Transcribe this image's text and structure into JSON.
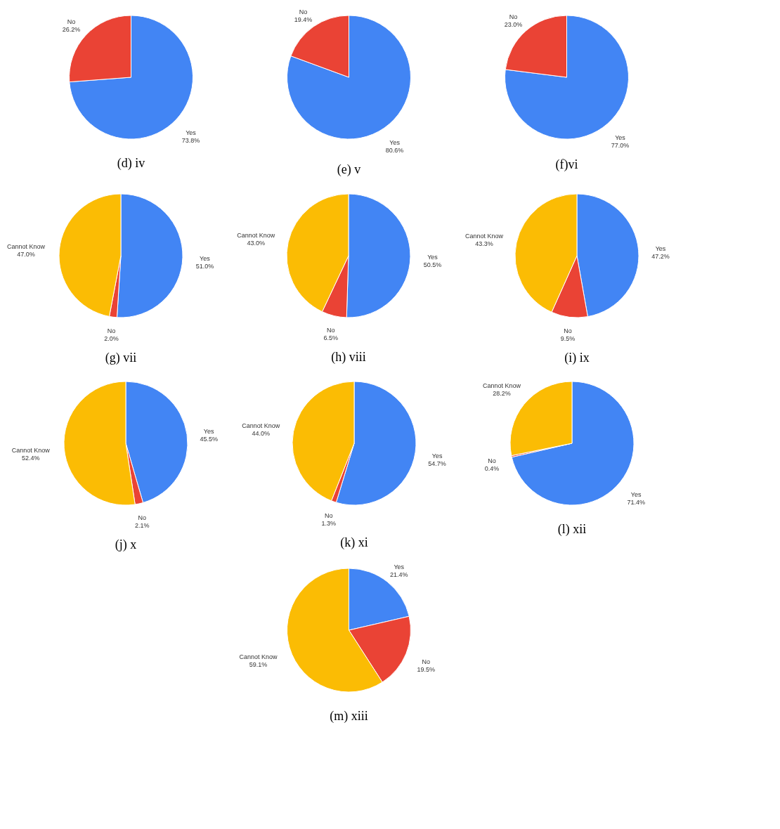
{
  "chart_data": [
    {
      "type": "pie",
      "title": "(d) iv",
      "categories": [
        "Yes",
        "No"
      ],
      "values": [
        73.8,
        26.2
      ],
      "value_labels": [
        "73.8%",
        "26.2%"
      ],
      "colors": [
        "#4285f4",
        "#ea4335"
      ]
    },
    {
      "type": "pie",
      "title": "(e) v",
      "categories": [
        "Yes",
        "No"
      ],
      "values": [
        80.6,
        19.4
      ],
      "value_labels": [
        "80.6%",
        "19.4%"
      ],
      "colors": [
        "#4285f4",
        "#ea4335"
      ]
    },
    {
      "type": "pie",
      "title": "(f)vi",
      "categories": [
        "Yes",
        "No"
      ],
      "values": [
        77.0,
        23.0
      ],
      "value_labels": [
        "77.0%",
        "23.0%"
      ],
      "colors": [
        "#4285f4",
        "#ea4335"
      ]
    },
    {
      "type": "pie",
      "title": "(g) vii",
      "categories": [
        "Yes",
        "No",
        "Cannot Know"
      ],
      "values": [
        51.0,
        2.0,
        47.0
      ],
      "value_labels": [
        "51.0%",
        "2.0%",
        "47.0%"
      ],
      "colors": [
        "#4285f4",
        "#ea4335",
        "#fbbc04"
      ]
    },
    {
      "type": "pie",
      "title": "(h) viii",
      "categories": [
        "Yes",
        "No",
        "Cannot Know"
      ],
      "values": [
        50.5,
        6.5,
        43.0
      ],
      "value_labels": [
        "50.5%",
        "6.5%",
        "43.0%"
      ],
      "colors": [
        "#4285f4",
        "#ea4335",
        "#fbbc04"
      ]
    },
    {
      "type": "pie",
      "title": "(i) ix",
      "categories": [
        "Yes",
        "No",
        "Cannot Know"
      ],
      "values": [
        47.2,
        9.5,
        43.3
      ],
      "value_labels": [
        "47.2%",
        "9.5%",
        "43.3%"
      ],
      "colors": [
        "#4285f4",
        "#ea4335",
        "#fbbc04"
      ]
    },
    {
      "type": "pie",
      "title": "(j) x",
      "categories": [
        "Yes",
        "No",
        "Cannot Know"
      ],
      "values": [
        45.5,
        2.1,
        52.4
      ],
      "value_labels": [
        "45.5%",
        "2.1%",
        "52.4%"
      ],
      "colors": [
        "#4285f4",
        "#ea4335",
        "#fbbc04"
      ]
    },
    {
      "type": "pie",
      "title": "(k) xi",
      "categories": [
        "Yes",
        "No",
        "Cannot Know"
      ],
      "values": [
        54.7,
        1.3,
        44.0
      ],
      "value_labels": [
        "54.7%",
        "1.3%",
        "44.0%"
      ],
      "colors": [
        "#4285f4",
        "#ea4335",
        "#fbbc04"
      ]
    },
    {
      "type": "pie",
      "title": "(l) xii",
      "categories": [
        "Yes",
        "No",
        "Cannot Know"
      ],
      "values": [
        71.4,
        0.4,
        28.2
      ],
      "value_labels": [
        "71.4%",
        "0.4%",
        "28.2%"
      ],
      "colors": [
        "#4285f4",
        "#ea4335",
        "#fbbc04"
      ]
    },
    {
      "type": "pie",
      "title": "(m) xiii",
      "categories": [
        "Yes",
        "No",
        "Cannot Know"
      ],
      "values": [
        21.4,
        19.5,
        59.1
      ],
      "value_labels": [
        "21.4%",
        "19.5%",
        "59.1%"
      ],
      "colors": [
        "#4285f4",
        "#ea4335",
        "#fbbc04"
      ]
    }
  ]
}
